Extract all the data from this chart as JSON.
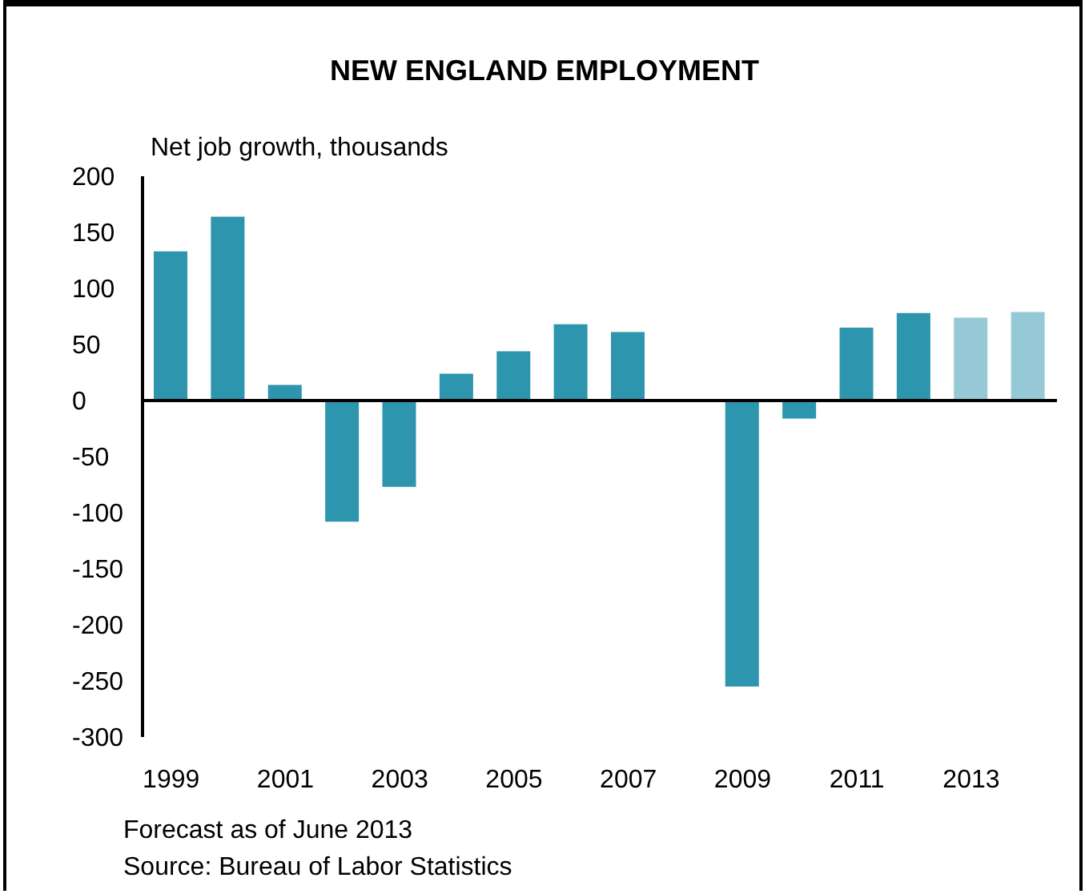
{
  "chart_data": {
    "type": "bar",
    "title": "NEW ENGLAND EMPLOYMENT",
    "ylabel": "Net job growth, thousands",
    "categories": [
      "1999",
      null,
      "2001",
      null,
      "2003",
      null,
      "2005",
      null,
      "2007",
      null,
      "2009",
      null,
      "2011",
      null,
      "2013",
      null
    ],
    "values": [
      133,
      164,
      14,
      -108,
      -77,
      24,
      44,
      68,
      61,
      0,
      -255,
      -16,
      65,
      78,
      74,
      79
    ],
    "colors": [
      "#2d95ae",
      "#2d95ae",
      "#2d95ae",
      "#2d95ae",
      "#2d95ae",
      "#2d95ae",
      "#2d95ae",
      "#2d95ae",
      "#2d95ae",
      "#2d95ae",
      "#2d95ae",
      "#2d95ae",
      "#2d95ae",
      "#2d95ae",
      "#96c9d6",
      "#96c9d6"
    ],
    "ylim": [
      -300,
      200
    ],
    "yticks": [
      -300,
      -250,
      -200,
      -150,
      -100,
      -50,
      0,
      50,
      100,
      150,
      200
    ],
    "ref_lines": [
      {
        "axis": "y",
        "value": 0
      }
    ],
    "annotations": [
      "Forecast as of June 2013",
      "Source: Bureau of Labor Statistics"
    ]
  }
}
